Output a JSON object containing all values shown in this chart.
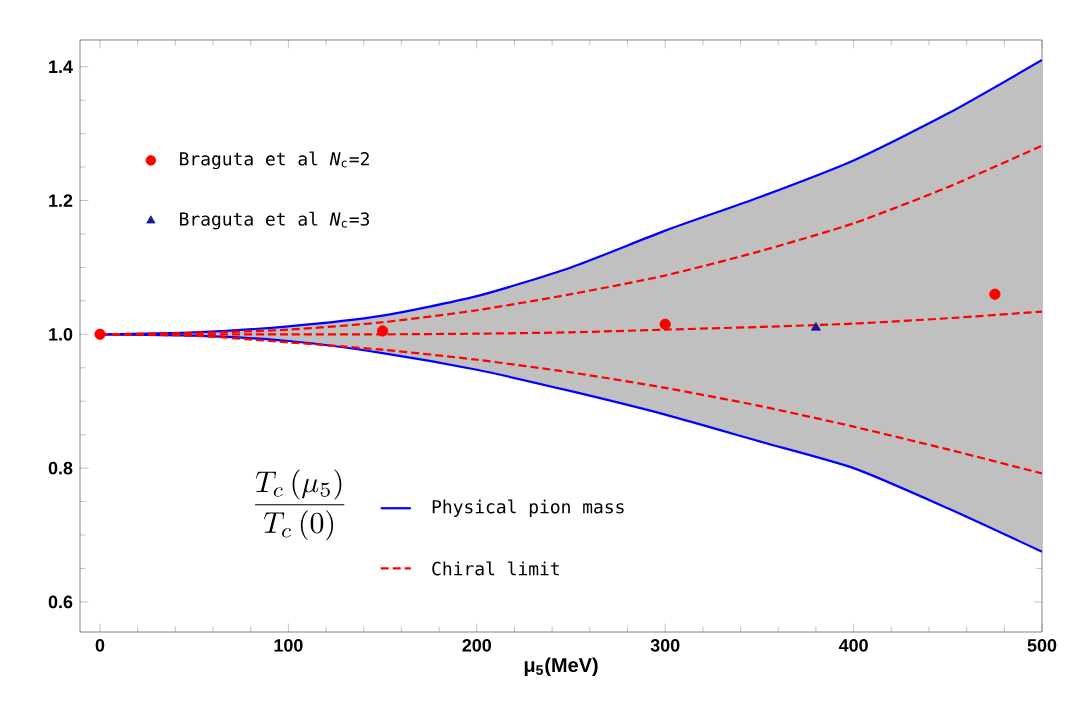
{
  "chart_data": {
    "type": "line",
    "xlabel": "μ$_{5}$(MeV)",
    "ylabel": "\\frac{T_c\\,(\\mu_5)}{T_c\\,(0)}",
    "x": [
      0,
      50,
      100,
      150,
      200,
      250,
      300,
      350,
      400,
      450,
      500
    ],
    "xlim": [
      -10.6,
      500
    ],
    "ylim": [
      0.555,
      1.44
    ],
    "xticks": [
      0,
      100,
      200,
      300,
      400,
      500
    ],
    "yticks": [
      0.6,
      0.8,
      {
        "value": 1.0,
        "label": "1.0"
      },
      1.2,
      1.4
    ],
    "legend": "left",
    "series": [
      {
        "name": "Physical pion mass",
        "color": "#0000ff",
        "line_style": "solid",
        "values": [
          1.0,
          1.003,
          1.012,
          1.028,
          1.057,
          1.1,
          1.155,
          1.205,
          1.26,
          1.33,
          1.41
        ]
      },
      {
        "color": "#0000ff",
        "line_style": "solid",
        "values": [
          1.0,
          0.998,
          0.99,
          0.972,
          0.947,
          0.915,
          0.88,
          0.84,
          0.8,
          0.74,
          0.675
        ]
      },
      {
        "name": "Chiral limit",
        "color": "#ff0000",
        "line_style": "dashed",
        "values": [
          1.0,
          1.002,
          1.007,
          1.018,
          1.036,
          1.06,
          1.088,
          1.124,
          1.166,
          1.22,
          1.282
        ]
      },
      {
        "color": "#ff0000",
        "line_style": "dashed",
        "values": [
          1.0,
          1.0,
          1.0,
          1.0,
          1.001,
          1.003,
          1.007,
          1.011,
          1.016,
          1.024,
          1.034
        ],
        "lower": [
          1.0,
          0.998,
          0.99,
          0.972,
          0.947,
          0.915,
          0.88,
          0.84,
          0.8,
          0.74,
          0.675
        ],
        "upper": [
          1.0,
          1.003,
          1.012,
          1.028,
          1.057,
          1.1,
          1.155,
          1.205,
          1.26,
          1.33,
          1.41
        ]
      },
      {
        "color": "#ff0000",
        "line_style": "dashed",
        "values": [
          1.0,
          0.998,
          0.988,
          0.977,
          0.962,
          0.943,
          0.92,
          0.893,
          0.862,
          0.828,
          0.792
        ]
      },
      {
        "type": "scatter",
        "name": "Braguta et al *N*$_{c}$=2",
        "color": "#ff0000",
        "marker": "circle",
        "x": [
          0,
          150,
          300,
          475
        ],
        "values": [
          1.0,
          1.005,
          1.015,
          1.06
        ]
      },
      {
        "type": "scatter",
        "name": "Braguta et al *N*$_{c}$=3",
        "color": "#1a1a8c",
        "marker": "triangle",
        "x": [
          380
        ],
        "values": [
          1.01
        ]
      }
    ]
  }
}
